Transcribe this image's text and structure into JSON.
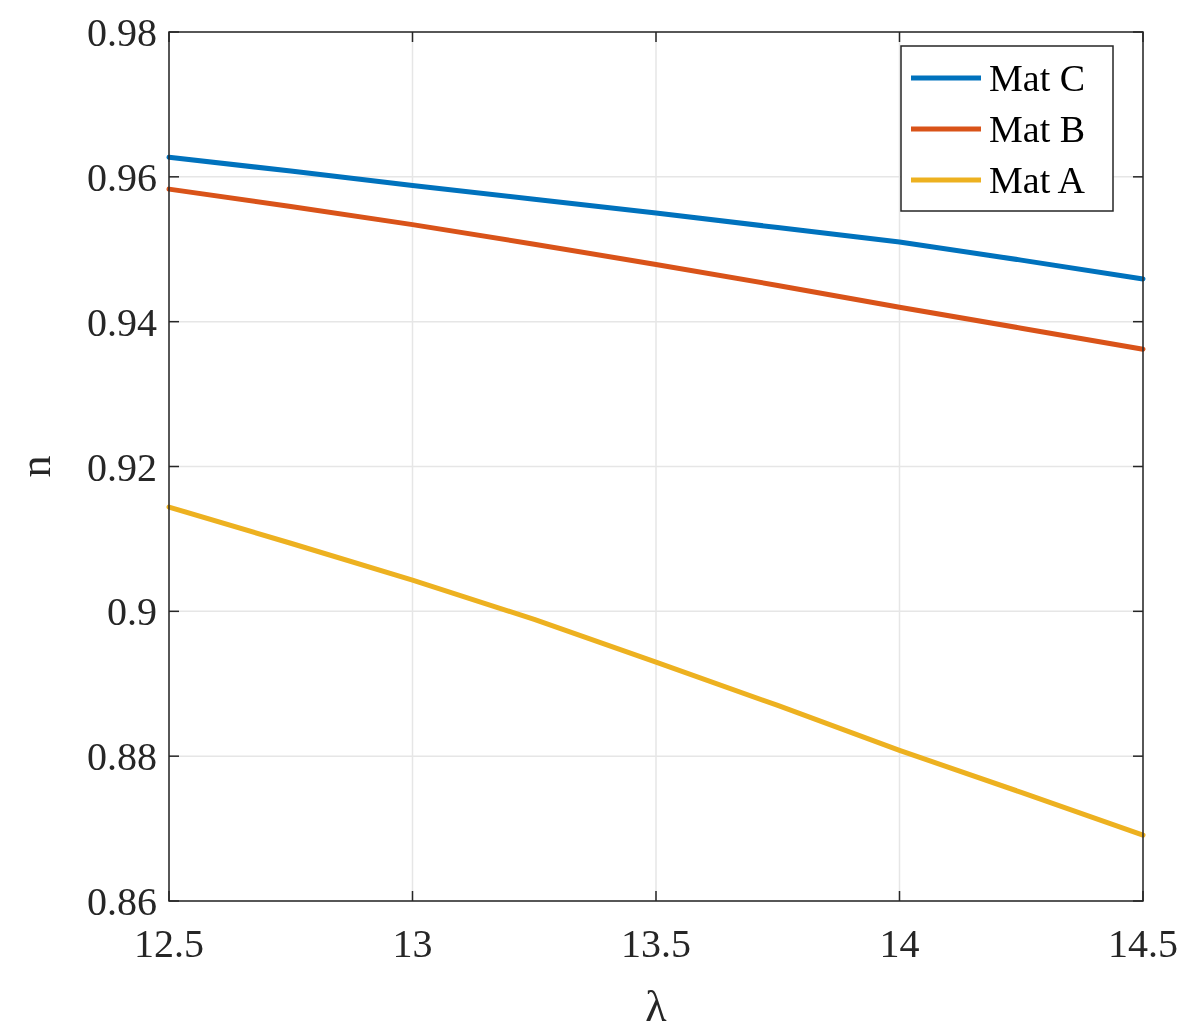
{
  "chart_data": {
    "type": "line",
    "xlabel": "λ",
    "ylabel": "n",
    "xlim": [
      12.5,
      14.5
    ],
    "xticks": [
      12.5,
      13,
      13.5,
      14,
      14.5
    ],
    "ylim": [
      0.86,
      0.98
    ],
    "yticks": [
      0.86,
      0.88,
      0.9,
      0.92,
      0.94,
      0.96,
      0.98
    ],
    "grid": true,
    "legend": "top right",
    "line_style": "solid",
    "marker": "none",
    "x": [
      12.5,
      12.75,
      13,
      13.25,
      13.5,
      13.75,
      14,
      14.25,
      14.5
    ],
    "series": [
      {
        "name": "Mat C",
        "color": "#0072bd",
        "values": [
          0.9627,
          0.9608,
          0.9588,
          0.9569,
          0.955,
          0.953,
          0.951,
          0.9485,
          0.9459
        ]
      },
      {
        "name": "Mat B",
        "color": "#d95319",
        "values": [
          0.9583,
          0.9559,
          0.9534,
          0.9507,
          0.9479,
          0.945,
          0.942,
          0.9391,
          0.9362
        ]
      },
      {
        "name": "Mat A",
        "color": "#edb120",
        "values": [
          0.9144,
          0.9094,
          0.9043,
          0.8989,
          0.893,
          0.887,
          0.8808,
          0.875,
          0.8691
        ]
      }
    ]
  }
}
